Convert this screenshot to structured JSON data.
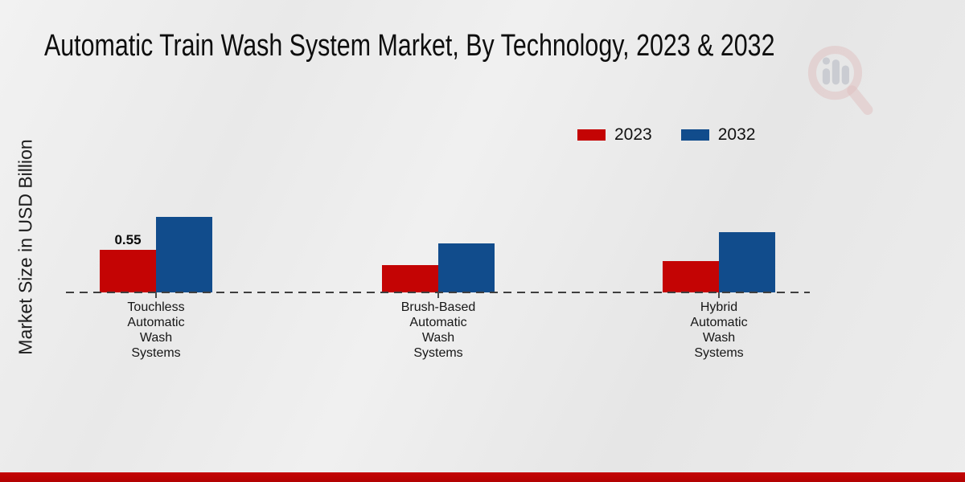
{
  "title": "Automatic Train Wash System Market, By Technology, 2023 & 2032",
  "y_axis_label": "Market Size in USD Billion",
  "legend": {
    "items": [
      {
        "label": "2023",
        "color": "#c40404"
      },
      {
        "label": "2032",
        "color": "#114c8c"
      }
    ]
  },
  "watermark_icon": "magnifier-bar-chart-logo",
  "footer": {
    "accent_color": "#c40404"
  },
  "chart_data": {
    "type": "bar",
    "title": "Automatic Train Wash System Market, By Technology, 2023 & 2032",
    "ylabel": "Market Size in USD Billion",
    "categories": [
      "Touchless Automatic Wash Systems",
      "Brush-Based Automatic Wash Systems",
      "Hybrid Automatic Wash Systems"
    ],
    "series": [
      {
        "name": "2023",
        "color": "#c40404",
        "values": [
          0.55,
          0.35,
          0.4
        ]
      },
      {
        "name": "2032",
        "color": "#114c8c",
        "values": [
          0.98,
          0.63,
          0.78
        ]
      }
    ],
    "bar_value_labels": [
      {
        "series": "2023",
        "category_index": 0,
        "text": "0.55"
      }
    ],
    "ylim": [
      0,
      2.3
    ],
    "grid": false,
    "baseline_style": "dashed",
    "legend_position": "top-right"
  }
}
